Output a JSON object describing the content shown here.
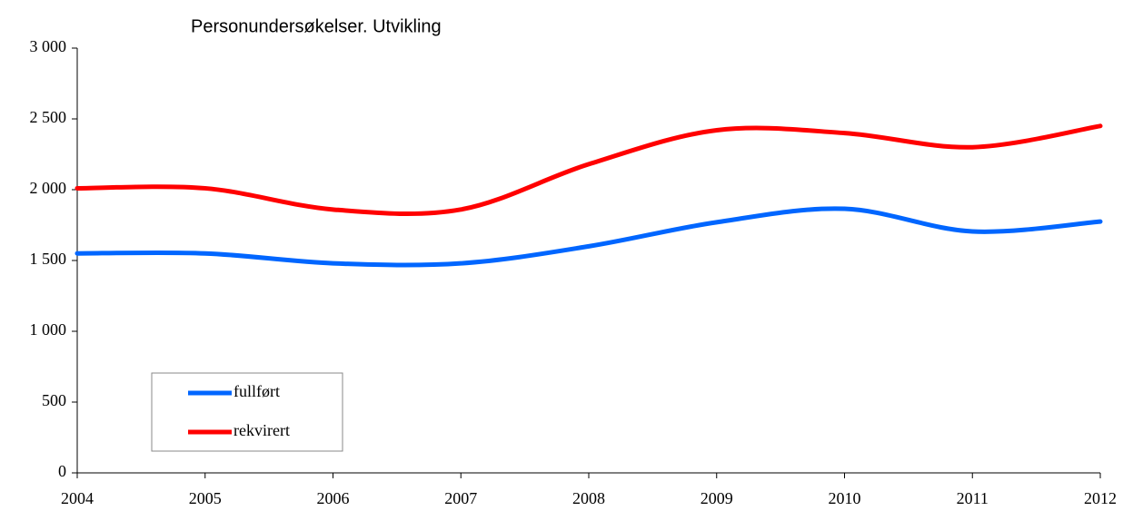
{
  "chart_data": {
    "type": "line",
    "title": "Personundersøkelser. Utvikling",
    "categories": [
      "2004",
      "2005",
      "2006",
      "2007",
      "2008",
      "2009",
      "2010",
      "2011",
      "2012"
    ],
    "series": [
      {
        "name": "fullført",
        "color": "#0066ff",
        "values": [
          1550,
          1550,
          1480,
          1480,
          1600,
          1770,
          1865,
          1705,
          1775
        ]
      },
      {
        "name": "rekvirert",
        "color": "#ff0000",
        "values": [
          2010,
          2010,
          1860,
          1860,
          2180,
          2420,
          2400,
          2300,
          2450
        ]
      }
    ],
    "ylim": [
      0,
      3000
    ],
    "yticks": [
      0,
      500,
      {
        "value": 1000,
        "label": "1 000"
      },
      {
        "value": 1500,
        "label": "1 500"
      },
      {
        "value": 2000,
        "label": "2 000"
      },
      {
        "value": 2500,
        "label": "2 500"
      },
      {
        "value": 3000,
        "label": "3 000"
      }
    ],
    "grid": false,
    "legend": "lower left"
  }
}
